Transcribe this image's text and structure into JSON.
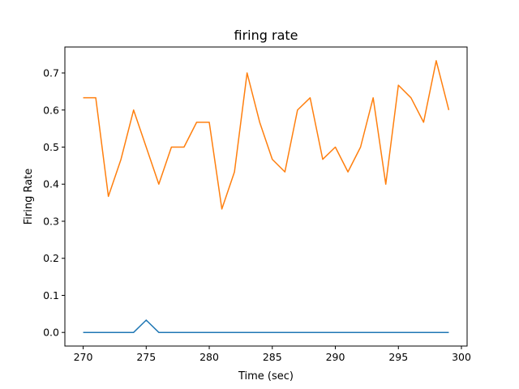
{
  "chart_data": {
    "type": "line",
    "title": "firing rate",
    "xlabel": "Time (sec)",
    "ylabel": "Firing Rate",
    "xlim": [
      268.55,
      300.45
    ],
    "ylim": [
      -0.0367,
      0.77
    ],
    "xticks": [
      270,
      275,
      280,
      285,
      290,
      295,
      300
    ],
    "yticks": [
      0.0,
      0.1,
      0.2,
      0.3,
      0.4,
      0.5,
      0.6,
      0.7
    ],
    "ytick_labels": [
      "0.0",
      "0.1",
      "0.2",
      "0.3",
      "0.4",
      "0.5",
      "0.6",
      "0.7"
    ],
    "grid": false,
    "legend": "none",
    "x": [
      270,
      271,
      272,
      273,
      274,
      275,
      276,
      277,
      278,
      279,
      280,
      281,
      282,
      283,
      284,
      285,
      286,
      287,
      288,
      289,
      290,
      291,
      292,
      293,
      294,
      295,
      296,
      297,
      298,
      299
    ],
    "series": [
      {
        "color": "#1f77b4",
        "values": [
          0,
          0,
          0,
          0,
          0,
          0.0333,
          0,
          0,
          0,
          0,
          0,
          0,
          0,
          0,
          0,
          0,
          0,
          0,
          0,
          0,
          0,
          0,
          0,
          0,
          0,
          0,
          0,
          0,
          0,
          0
        ]
      },
      {
        "color": "#ff7f0e",
        "values": [
          0.633,
          0.633,
          0.367,
          0.467,
          0.6,
          0.5,
          0.4,
          0.5,
          0.5,
          0.567,
          0.567,
          0.333,
          0.433,
          0.7,
          0.567,
          0.467,
          0.433,
          0.6,
          0.633,
          0.467,
          0.5,
          0.433,
          0.5,
          0.633,
          0.4,
          0.667,
          0.633,
          0.567,
          0.733,
          0.6
        ]
      }
    ]
  }
}
